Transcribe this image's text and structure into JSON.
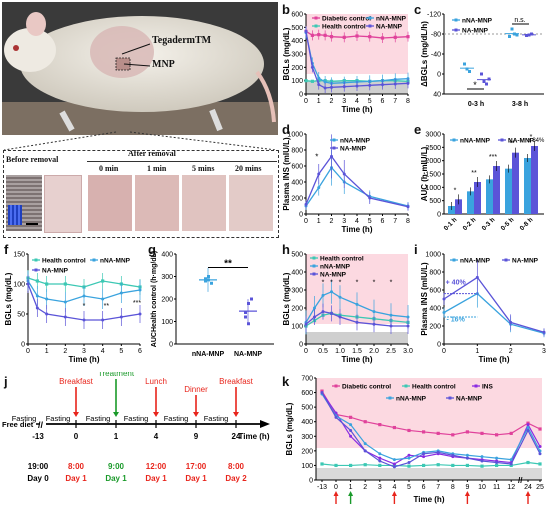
{
  "panel_letters": [
    "a",
    "b",
    "c",
    "d",
    "e",
    "f",
    "g",
    "h",
    "i",
    "j",
    "k"
  ],
  "photo": {
    "callout_tegaderm": "TegadermTM",
    "callout_mnp": "MNP",
    "before_removal": "Before removal",
    "after_removal": "After removal",
    "times": [
      "0 min",
      "1 min",
      "5 mins",
      "20 mins"
    ]
  },
  "colors": {
    "diabetic": "#e0429b",
    "health": "#3cc8b4",
    "nna": "#3aa3de",
    "na": "#5b54d8",
    "ins": "#8a2be2",
    "shade": "#fcd9e1",
    "red": "#e8251c",
    "green": "#1a9a2a"
  },
  "panel_b": {
    "legend": [
      "Diabetic control",
      "nNA-MNP",
      "Health control",
      "NA-MNP"
    ],
    "ylabel": "BGLs (mg/dL)",
    "xlabel": "Time (h)",
    "yticks": [
      "0",
      "100",
      "200",
      "300",
      "400",
      "500",
      "600"
    ],
    "xticks": [
      "0",
      "1",
      "2",
      "3",
      "4",
      "5",
      "6",
      "7",
      "8"
    ]
  },
  "panel_c": {
    "legend": [
      "nNA-MNP",
      "NA-MNP"
    ],
    "ylabel": "ΔBGLs (mg/dL/h)",
    "yticks": [
      "40",
      "0",
      "-40",
      "-80",
      "-120"
    ],
    "groups": [
      "0-3 h",
      "3-8 h"
    ],
    "sig": [
      "*",
      "n.s."
    ]
  },
  "panel_d": {
    "legend": [
      "nNA-MNP",
      "NA-MNP"
    ],
    "ylabel": "Plasma INS (mIU/L)",
    "xlabel": "Time (h)",
    "yticks": [
      "0",
      "200",
      "400",
      "600",
      "800",
      "1000"
    ],
    "xticks": [
      "0",
      "1",
      "2",
      "3",
      "4",
      "5",
      "6",
      "7",
      "8"
    ],
    "sig": "*"
  },
  "panel_e": {
    "legend": [
      "nNA-MNP",
      "NA-MNP"
    ],
    "ylabel": "AUC (h·mIU/L)",
    "yticks": [
      "0",
      "500",
      "1000",
      "1500",
      "2000",
      "2500",
      "3000"
    ],
    "groups": [
      "0-1 h",
      "0-2 h",
      "0-3 h",
      "0-5 h",
      "0-8 h"
    ],
    "sig": [
      "*",
      "**",
      "***",
      "**",
      "*"
    ],
    "note": "x 84%"
  },
  "panel_f": {
    "legend": [
      "Health control",
      "nNA-MNP",
      "NA-MNP"
    ],
    "ylabel": "BGLs (mg/dL)",
    "xlabel": "Time (h)",
    "yticks": [
      "0",
      "50",
      "100",
      "150"
    ],
    "xticks": [
      "0",
      "1",
      "2",
      "3",
      "4",
      "5",
      "6"
    ],
    "sig": [
      "*",
      "**",
      "***"
    ]
  },
  "panel_g": {
    "ylabel": "AUCHealth control (h·mg/dL)",
    "yticks": [
      "0",
      "100",
      "200",
      "300",
      "400"
    ],
    "groups": [
      "nNA-MNP",
      "NA-MNP"
    ],
    "sig": "**"
  },
  "panel_h": {
    "legend": [
      "Health control",
      "nNA-MNP",
      "NA-MNP"
    ],
    "ylabel": "BGLs (mg/dL)",
    "xlabel": "Time (h)",
    "yticks": [
      "0",
      "100",
      "200",
      "300",
      "400",
      "500"
    ],
    "xticks": [
      "0",
      "0.5",
      "1.0",
      "1.5",
      "2.0",
      "2.5",
      "3.0"
    ],
    "sig": "*"
  },
  "panel_i": {
    "legend": [
      "nNA-MNP",
      "NA-MNP"
    ],
    "ylabel": "Plasma INS (mIU/L)",
    "xlabel": "Time (h)",
    "yticks": [
      "0",
      "200",
      "400",
      "600",
      "800",
      "1000"
    ],
    "xticks": [
      "0",
      "1",
      "2",
      "3"
    ],
    "annot": [
      "+ 40%",
      "- 16%"
    ]
  },
  "panel_j": {
    "free_diet": "Free diet",
    "events_top": [
      {
        "label": "Breakfast",
        "color": "red"
      },
      {
        "label": "Treatment",
        "color": "green"
      },
      {
        "label": "Lunch",
        "color": "red"
      },
      {
        "label": "Dinner",
        "color": "red"
      },
      {
        "label": "Breakfast",
        "color": "red"
      }
    ],
    "fasting": [
      "Fasting",
      "Fasting",
      "Fasting",
      "Fasting",
      "Fasting",
      "Fasting"
    ],
    "ticks": [
      "-13",
      "0",
      "1",
      "4",
      "9",
      "24"
    ],
    "time_unit": "Time (h)",
    "clock": [
      "19:00",
      "8:00",
      "9:00",
      "12:00",
      "17:00",
      "8:00"
    ],
    "days": [
      "Day 0",
      "Day 1",
      "Day 1",
      "Day 1",
      "Day 1",
      "Day 2"
    ]
  },
  "panel_k": {
    "legend": [
      "Diabetic control",
      "Health control",
      "INS",
      "nNA-MNP",
      "NA-MNP"
    ],
    "ylabel": "BGLs (mg/dL)",
    "xlabel": "Time (h)",
    "yticks": [
      "0",
      "100",
      "200",
      "300",
      "400",
      "500",
      "600",
      "700"
    ],
    "xticks": [
      "-13",
      "0",
      "1",
      "2",
      "3",
      "4",
      "5",
      "6",
      "7",
      "8",
      "9",
      "10",
      "11",
      "12",
      "24",
      "25"
    ]
  }
}
